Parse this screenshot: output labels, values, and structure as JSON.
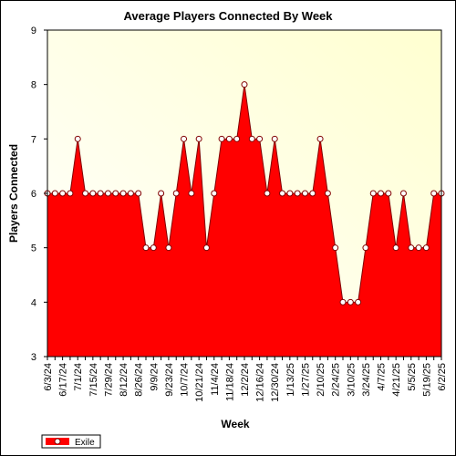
{
  "chart_data": {
    "type": "area",
    "title": "Average Players Connected By Week",
    "xlabel": "Week",
    "ylabel": "Players Connected",
    "ylim": [
      3,
      9
    ],
    "yticks": [
      "3",
      "4",
      "5",
      "6",
      "7",
      "8",
      "9"
    ],
    "xtick_labels": [
      "6/3/24",
      "6/17/24",
      "7/1/24",
      "7/15/24",
      "7/29/24",
      "8/12/24",
      "8/26/24",
      "9/9/24",
      "9/23/24",
      "10/7/24",
      "10/21/24",
      "11/4/24",
      "11/18/24",
      "12/2/24",
      "12/16/24",
      "12/30/24",
      "1/13/25",
      "1/27/25",
      "2/10/25",
      "2/24/25",
      "3/10/25",
      "3/24/25",
      "4/7/25",
      "4/21/25",
      "5/5/25",
      "5/19/25",
      "6/2/25"
    ],
    "x": [
      "6/3/24",
      "6/10/24",
      "6/17/24",
      "6/24/24",
      "7/1/24",
      "7/8/24",
      "7/15/24",
      "7/22/24",
      "7/29/24",
      "8/5/24",
      "8/12/24",
      "8/19/24",
      "8/26/24",
      "9/2/24",
      "9/9/24",
      "9/16/24",
      "9/23/24",
      "9/30/24",
      "10/7/24",
      "10/14/24",
      "10/21/24",
      "10/28/24",
      "11/4/24",
      "11/11/24",
      "11/18/24",
      "11/25/24",
      "12/2/24",
      "12/9/24",
      "12/16/24",
      "12/23/24",
      "12/30/24",
      "1/6/25",
      "1/13/25",
      "1/20/25",
      "1/27/25",
      "2/3/25",
      "2/10/25",
      "2/17/25",
      "2/24/25",
      "3/3/25",
      "3/10/25",
      "3/17/25",
      "3/24/25",
      "3/31/25",
      "4/7/25",
      "4/14/25",
      "4/21/25",
      "4/28/25",
      "5/5/25",
      "5/12/25",
      "5/19/25",
      "5/26/25",
      "6/2/25"
    ],
    "series": [
      {
        "name": "Exile",
        "values": [
          6,
          6,
          6,
          6,
          7,
          6,
          6,
          6,
          6,
          6,
          6,
          6,
          6,
          5,
          5,
          6,
          5,
          6,
          7,
          6,
          7,
          5,
          6,
          7,
          7,
          7,
          8,
          7,
          7,
          6,
          7,
          6,
          6,
          6,
          6,
          6,
          7,
          6,
          5,
          4,
          4,
          4,
          5,
          6,
          6,
          6,
          5,
          6,
          5,
          5,
          5,
          6,
          6
        ]
      }
    ],
    "grid": false,
    "legend": "bottom-left",
    "colors": {
      "fill": "#ff0000",
      "line": "#800000",
      "plot_bg_top": "#ffffd0",
      "plot_bg_bottom": "#ffffff",
      "marker_fill": "#ffffff"
    }
  }
}
